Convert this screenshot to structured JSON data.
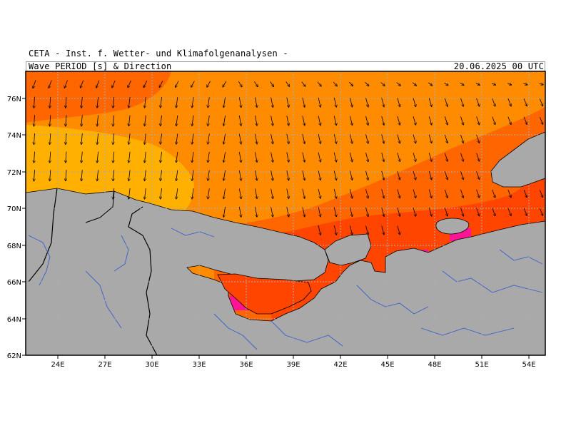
{
  "header": {
    "institute": "CETA - Inst. f. Wetter- und Klimafolgenanalysen -",
    "product": "Wave PERIOD [s] & Direction",
    "datetime": "20.06.2025 00 UTC"
  },
  "map": {
    "lat_labels": [
      "76N",
      "74N",
      "72N",
      "70N",
      "68N",
      "66N",
      "64N",
      "62N"
    ],
    "lon_labels": [
      "24E",
      "27E",
      "30E",
      "33E",
      "36E",
      "39E",
      "42E",
      "45E",
      "48E",
      "51E",
      "54E"
    ],
    "lat_range": [
      62,
      77.5
    ],
    "lon_range": [
      22.5,
      55.5
    ],
    "colors": {
      "land": "#a9a9a9",
      "period_short": "#ff1493",
      "period_medium_short": "#ff4500",
      "period_medium": "#ff6600",
      "period_medium_long": "#ff8c00",
      "period_long": "#ffb000",
      "rivers": "#3a5fcd",
      "borders": "#000000",
      "arrows": "#000000",
      "grid": "#aaaaaa"
    },
    "arrow_direction": "southward (south-southwest to southeast)"
  }
}
